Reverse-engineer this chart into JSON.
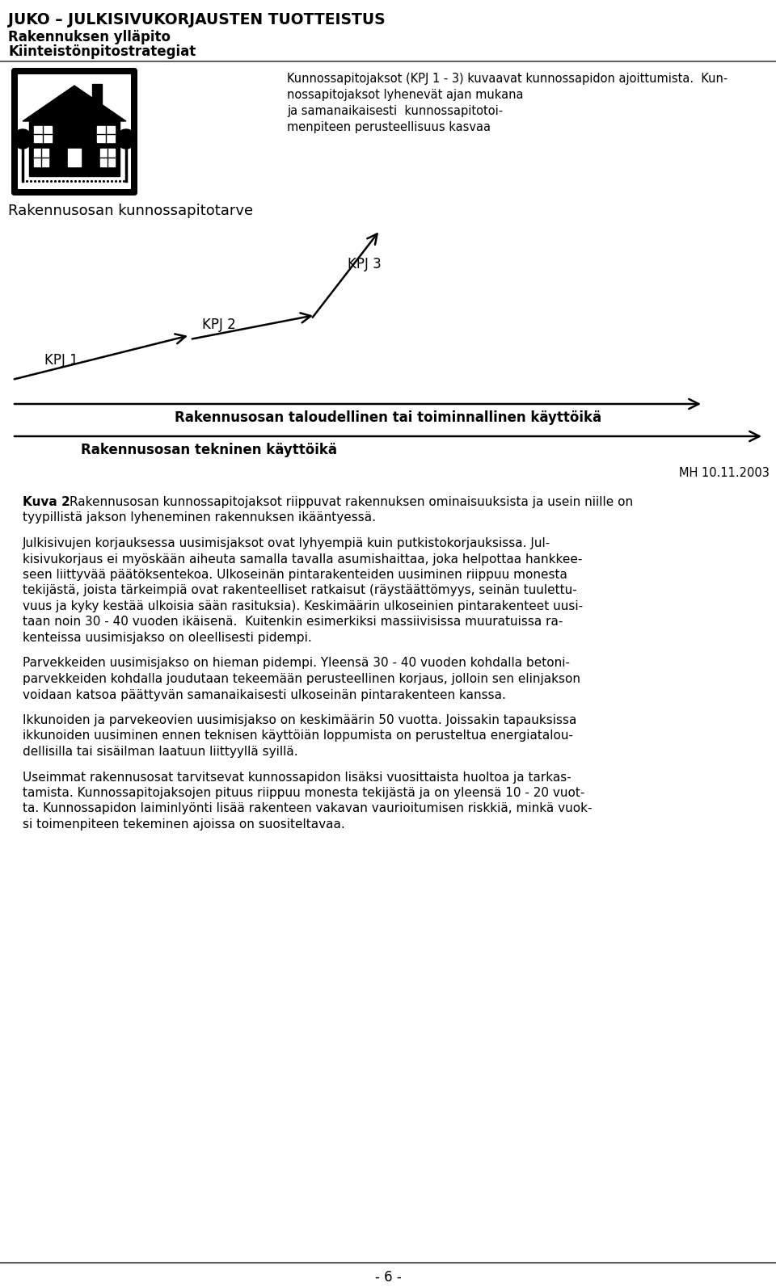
{
  "bg_color": "#ffffff",
  "header_title": "JUKO – JULKISIVUKORJAUSTEN TUOTTEISTUS",
  "header_sub1": "Rakennuksen ylläpito",
  "header_sub2": "Kiinteistönpitostrategiat",
  "right_text_lines": [
    "Kunnossapitojaksot (KPJ 1 - 3) kuvaavat kunnossapidon ajoittumista.  Kun-",
    "nossapitojaksot lyhenevät ajan mukana",
    "ja samanaikaisesti  kunnossapitotoi-",
    "menpiteen perusteellisuus kasvaa"
  ],
  "label_kunnossapitotarve": "Rakennusosan kunnossapitotarve",
  "label_kpj1": "KPJ 1",
  "label_kpj2": "KPJ 2",
  "label_kpj3": "KPJ 3",
  "label_taloudellinen": "Rakennusosan taloudellinen tai toiminnallinen käyttöikä",
  "label_tekninen": "Rakennusosan tekninen käyttöikä",
  "label_mh": "MH 10.11.2003",
  "body_paragraphs": [
    [
      "Kuva 2 ",
      "Rakennusosan kunnossapitojaksot riippuvat rakennuksen ominaisuuksista ja usein niille on\ntyypillistä jakson lyheneminen rakennuksen ikääntyessä."
    ],
    [
      "Julkisivujen korjauksessa uusimisjaksot ovat lyhyempiä kuin putkistokorjauksissa. Jul-\nkisivukorjaus ei myöskään aiheuta samalla tavalla asumishaittaa, joka helpottaa hankkee-\nseen liittyvää päätöksentekoa. Ulkoseinän pintarakenteiden uusiminen riippuu monesta\ntekijästä, joista tärkeimpiä ovat rakenteelliset ratkaisut (räystäättömyys, seinän tuulettu-\nvuus ja kyky kestää ulkoisia sään rasituksia). Keskimäärin ulkoseinien pintarakenteet uusi-\ntaan noin 30 - 40 vuoden ikäisenä.  Kuitenkin esimerkiksi massiivisissa muuratuissa ra-\nkenteissa uusimisjakso on oleellisesti pidempi."
    ],
    [
      "Parvekkeiden uusimisjakso on hieman pidempi. Yleensä 30 - 40 vuoden kohdalla betoni-\nparvekkeiden kohdalla joudutaan tekeemään perusteellinen korjaus, jolloin sen elinjakson\nvoidaan katsoa päättyvän samanaikaisesti ulkoseinän pintarakenteen kanssa."
    ],
    [
      "Ikkunoiden ja parvekeovien uusimisjakso on keskimäärin 50 vuotta. Joissakin tapauksissa\nikkunoiden uusiminen ennen teknisen käyttöiän loppumista on perusteltua energiatalou-\ndellisilla tai sisäilman laatuun liittyyllä syillä."
    ],
    [
      "Useimmat rakennusosat tarvitsevat kunnossapidon lisäksi vuosittaista huoltoa ja tarkas-\ntamista. Kunnossapitojaksojen pituus riippuu monesta tekijästä ja on yleensä 10 - 20 vuot-\nta. Kunnossapidon laiminlyönti lisää rakenteen vakavan vaurioitumisen riskkiä, minkä vuok-\nsi toimenpiteen tekeminen ajoissa on suositeltavaa."
    ]
  ],
  "footer_text": "- 6 -"
}
